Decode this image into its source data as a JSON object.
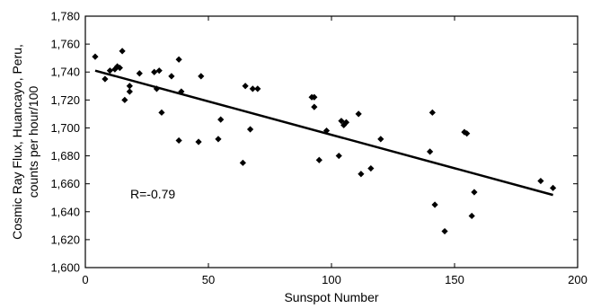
{
  "chart_data": {
    "type": "scatter",
    "title": "",
    "xlabel": "Sunspot Number",
    "ylabel_lines": [
      "Cosmic Ray Flux, Huancayo, Peru,",
      "counts per hour/100"
    ],
    "xlim": [
      0,
      200
    ],
    "ylim": [
      1600,
      1780
    ],
    "x_ticks": [
      0,
      50,
      100,
      150,
      200
    ],
    "x_tick_labels": [
      "0",
      "50",
      "100",
      "150",
      "200"
    ],
    "y_ticks": [
      1600,
      1620,
      1640,
      1660,
      1680,
      1700,
      1720,
      1740,
      1760,
      1780
    ],
    "y_tick_labels": [
      "1,600",
      "1,620",
      "1,640",
      "1,660",
      "1,680",
      "1,700",
      "1,720",
      "1,740",
      "1,760",
      "1,780"
    ],
    "grid": false,
    "annotation": "R=-0.79",
    "series": [
      {
        "marker": "diamond",
        "color": "#000000",
        "points": [
          [
            4,
            1751
          ],
          [
            8,
            1735
          ],
          [
            10,
            1741
          ],
          [
            12,
            1742
          ],
          [
            13,
            1744
          ],
          [
            14,
            1743
          ],
          [
            15,
            1755
          ],
          [
            16,
            1720
          ],
          [
            18,
            1730
          ],
          [
            18,
            1726
          ],
          [
            22,
            1739
          ],
          [
            28,
            1740
          ],
          [
            29,
            1728
          ],
          [
            30,
            1741
          ],
          [
            31,
            1711
          ],
          [
            35,
            1737
          ],
          [
            38,
            1749
          ],
          [
            38,
            1691
          ],
          [
            39,
            1726
          ],
          [
            46,
            1690
          ],
          [
            47,
            1737
          ],
          [
            54,
            1692
          ],
          [
            55,
            1706
          ],
          [
            64,
            1675
          ],
          [
            65,
            1730
          ],
          [
            67,
            1699
          ],
          [
            68,
            1728
          ],
          [
            70,
            1728
          ],
          [
            92,
            1722
          ],
          [
            93,
            1722
          ],
          [
            93,
            1715
          ],
          [
            95,
            1677
          ],
          [
            98,
            1698
          ],
          [
            103,
            1680
          ],
          [
            104,
            1705
          ],
          [
            105,
            1702
          ],
          [
            106,
            1704
          ],
          [
            111,
            1710
          ],
          [
            112,
            1667
          ],
          [
            116,
            1671
          ],
          [
            120,
            1692
          ],
          [
            140,
            1683
          ],
          [
            141,
            1711
          ],
          [
            142,
            1645
          ],
          [
            146,
            1626
          ],
          [
            154,
            1697
          ],
          [
            155,
            1696
          ],
          [
            157,
            1637
          ],
          [
            158,
            1654
          ],
          [
            185,
            1662
          ],
          [
            190,
            1657
          ]
        ]
      }
    ],
    "trendline": {
      "x": [
        4,
        190
      ],
      "y": [
        1741,
        1652
      ],
      "color": "#000000"
    }
  }
}
